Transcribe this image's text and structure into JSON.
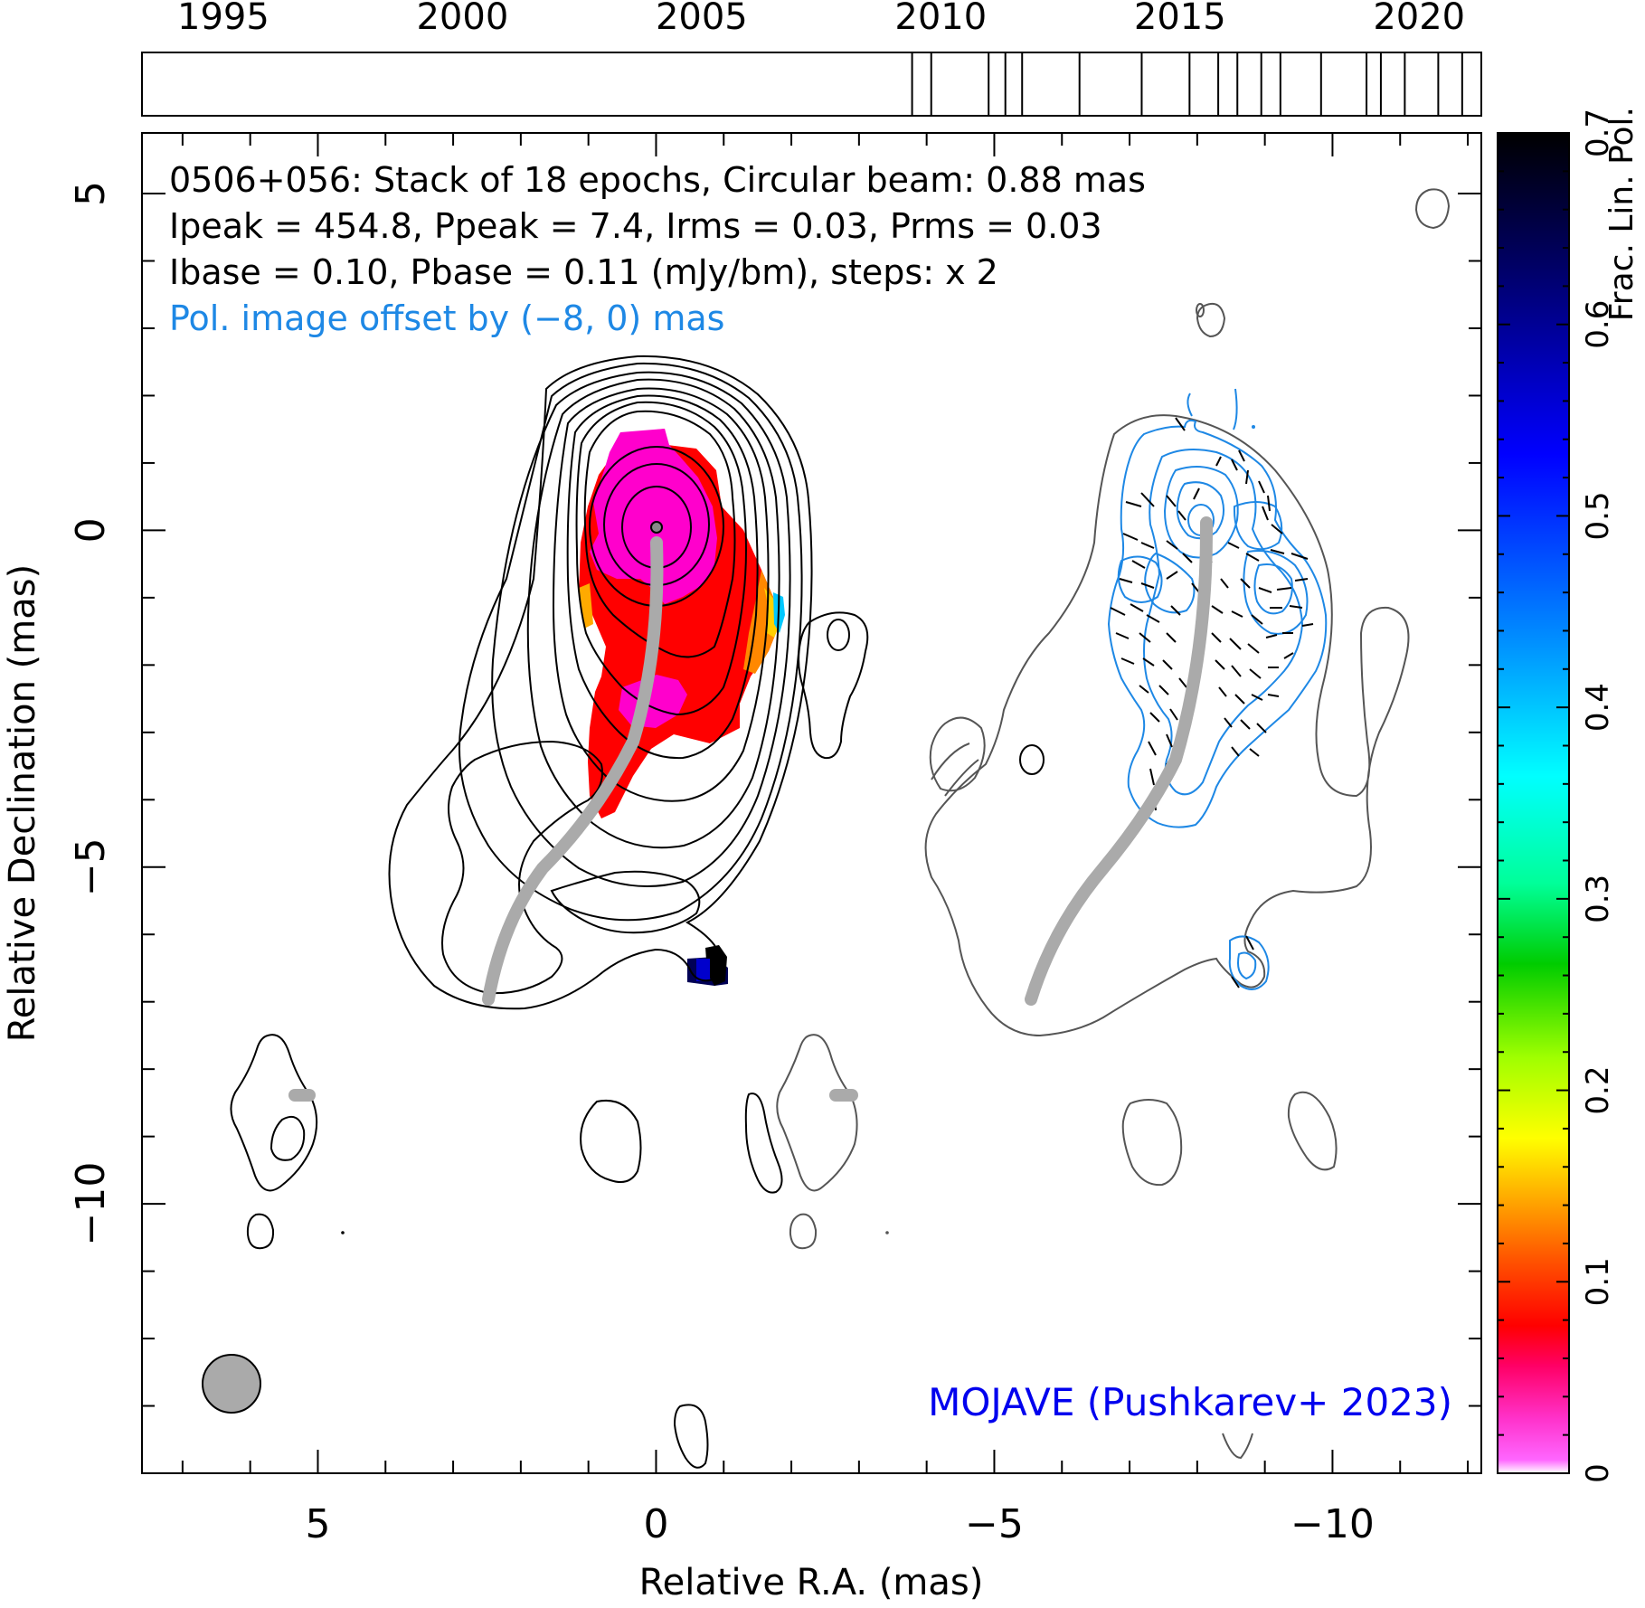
{
  "chart_data": {
    "type": "contour",
    "source": "0506+056",
    "epochs_label": "Stack of 18 epochs",
    "beam_label": "Circular beam: 0.88 mas",
    "header_lines": [
      "0506+056: Stack of 18 epochs, Circular beam: 0.88 mas",
      "Ipeak = 454.8, Ppeak = 7.4, Irms = 0.03, Prms = 0.03",
      "Ibase = 0.10, Pbase = 0.11 (mJy/bm), steps: x 2",
      "Pol. image offset by (−8, 0) mas"
    ],
    "ipeak": 454.8,
    "ppeak": 7.4,
    "irms": 0.03,
    "prms": 0.03,
    "ibase": 0.1,
    "pbase": 0.11,
    "units": "mJy/bm",
    "contour_step": 2,
    "pol_offset_mas": [
      -8,
      0
    ],
    "xlabel": "Relative R.A. (mas)",
    "ylabel": "Relative Declination (mas)",
    "xlim": [
      7.6,
      -12.2
    ],
    "ylim": [
      -14.0,
      5.9
    ],
    "x_ticks": [
      5,
      0,
      -5,
      -10
    ],
    "x_tick_labels": [
      "5",
      "0",
      "−5",
      "−10"
    ],
    "y_ticks": [
      5,
      0,
      -5,
      -10
    ],
    "y_tick_labels": [
      "5",
      "0",
      "−5",
      "−10"
    ],
    "colorbar": {
      "label": "Frac. Lin. Pol.",
      "range": [
        0,
        0.7
      ],
      "ticks": [
        0,
        0.1,
        0.2,
        0.3,
        0.4,
        0.5,
        0.6,
        0.7
      ],
      "tick_labels": [
        "0",
        "0.1",
        "0.2",
        "0.3",
        "0.4",
        "0.5",
        "0.6",
        "0.7"
      ]
    },
    "epoch_timeline": {
      "range": [
        1993.3,
        2021.3
      ],
      "ticks": [
        1995,
        2000,
        2005,
        2010,
        2015,
        2020
      ],
      "tick_labels": [
        "1995",
        "2000",
        "2005",
        "2010",
        "2015",
        "2020"
      ],
      "epochs": [
        2009.4,
        2009.8,
        2011.0,
        2011.35,
        2011.7,
        2012.9,
        2014.2,
        2015.2,
        2015.8,
        2016.2,
        2016.7,
        2017.1,
        2017.95,
        2018.9,
        2019.2,
        2019.7,
        2020.4,
        2020.9
      ]
    },
    "beam_mas": 0.88,
    "credit": "MOJAVE (Pushkarev+ 2023)",
    "colors": {
      "stokes_i_contours": "#000000",
      "offset_i_contour": "#555555",
      "pol_contours": "#1e88e5",
      "ridge_line": "#aaaaaa",
      "info_text": "#1e88e5",
      "credit_text": "#0000ee"
    }
  }
}
